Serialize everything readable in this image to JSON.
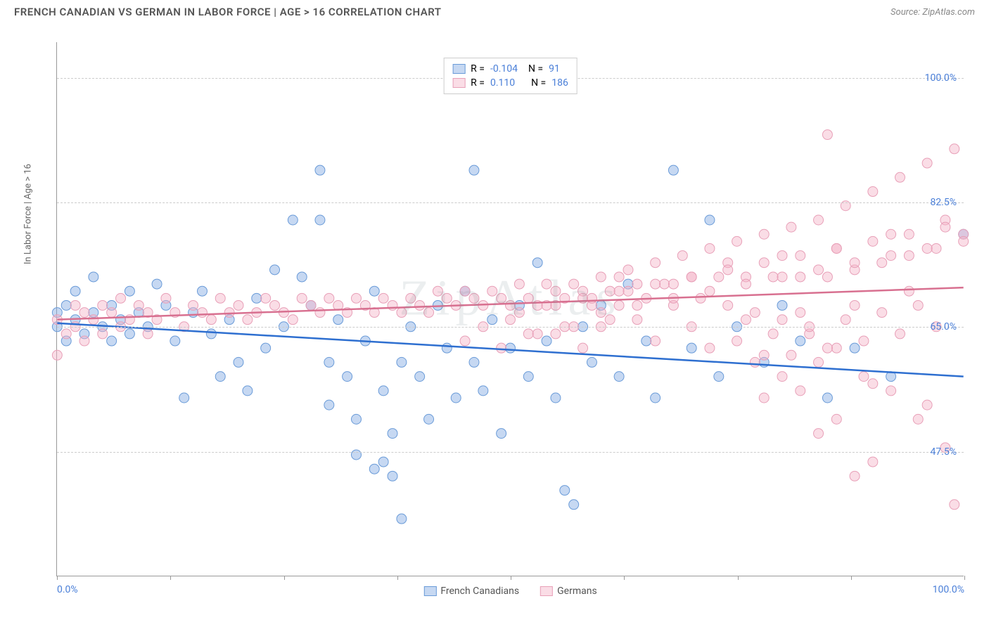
{
  "title": "FRENCH CANADIAN VS GERMAN IN LABOR FORCE | AGE > 16 CORRELATION CHART",
  "source": "Source: ZipAtlas.com",
  "watermark": "ZipAtlas",
  "ylabel": "In Labor Force | Age > 16",
  "chart": {
    "type": "scatter",
    "xlim": [
      0,
      100
    ],
    "ylim": [
      30,
      105
    ],
    "xtick_positions": [
      0,
      12.5,
      25,
      37.5,
      50,
      62.5,
      75,
      87.5,
      100
    ],
    "xtick_labels": {
      "0": "0.0%",
      "100": "100.0%"
    },
    "ytick_positions": [
      47.5,
      65.0,
      82.5,
      100.0
    ],
    "ytick_labels": [
      "47.5%",
      "65.0%",
      "82.5%",
      "100.0%"
    ],
    "ytick_color": "#4a7fd8",
    "xtick_color": "#4a7fd8",
    "background_color": "#ffffff",
    "grid_color": "#cccccc",
    "marker_radius": 7,
    "marker_opacity": 0.55,
    "line_width": 2.5,
    "series": [
      {
        "name": "French Canadians",
        "color_fill": "rgba(129,169,226,0.45)",
        "color_stroke": "#6a9bd8",
        "line_color": "#2e6fd0",
        "R": "-0.104",
        "N": "91",
        "regression": {
          "y_at_x0": 65.5,
          "y_at_x100": 58.0
        },
        "points": [
          [
            0,
            67
          ],
          [
            0,
            65
          ],
          [
            1,
            63
          ],
          [
            1,
            68
          ],
          [
            2,
            66
          ],
          [
            2,
            70
          ],
          [
            3,
            64
          ],
          [
            4,
            67
          ],
          [
            4,
            72
          ],
          [
            5,
            65
          ],
          [
            6,
            68
          ],
          [
            6,
            63
          ],
          [
            7,
            66
          ],
          [
            8,
            70
          ],
          [
            8,
            64
          ],
          [
            9,
            67
          ],
          [
            10,
            65
          ],
          [
            11,
            71
          ],
          [
            12,
            68
          ],
          [
            13,
            63
          ],
          [
            14,
            55
          ],
          [
            15,
            67
          ],
          [
            16,
            70
          ],
          [
            17,
            64
          ],
          [
            18,
            58
          ],
          [
            19,
            66
          ],
          [
            20,
            60
          ],
          [
            21,
            56
          ],
          [
            22,
            69
          ],
          [
            23,
            62
          ],
          [
            24,
            73
          ],
          [
            25,
            65
          ],
          [
            26,
            80
          ],
          [
            27,
            72
          ],
          [
            28,
            68
          ],
          [
            29,
            87
          ],
          [
            29,
            80
          ],
          [
            30,
            60
          ],
          [
            30,
            54
          ],
          [
            31,
            66
          ],
          [
            32,
            58
          ],
          [
            33,
            52
          ],
          [
            33,
            47
          ],
          [
            34,
            63
          ],
          [
            35,
            70
          ],
          [
            35,
            45
          ],
          [
            36,
            56
          ],
          [
            36,
            46
          ],
          [
            37,
            50
          ],
          [
            37,
            44
          ],
          [
            38,
            60
          ],
          [
            38,
            38
          ],
          [
            39,
            65
          ],
          [
            40,
            58
          ],
          [
            41,
            52
          ],
          [
            42,
            68
          ],
          [
            43,
            62
          ],
          [
            44,
            55
          ],
          [
            45,
            70
          ],
          [
            46,
            87
          ],
          [
            46,
            60
          ],
          [
            47,
            56
          ],
          [
            48,
            66
          ],
          [
            49,
            50
          ],
          [
            50,
            62
          ],
          [
            51,
            68
          ],
          [
            52,
            58
          ],
          [
            53,
            74
          ],
          [
            54,
            63
          ],
          [
            55,
            55
          ],
          [
            56,
            42
          ],
          [
            57,
            40
          ],
          [
            58,
            65
          ],
          [
            59,
            60
          ],
          [
            60,
            68
          ],
          [
            62,
            58
          ],
          [
            63,
            71
          ],
          [
            65,
            63
          ],
          [
            66,
            55
          ],
          [
            68,
            87
          ],
          [
            70,
            62
          ],
          [
            72,
            80
          ],
          [
            73,
            58
          ],
          [
            75,
            65
          ],
          [
            78,
            60
          ],
          [
            80,
            68
          ],
          [
            82,
            63
          ],
          [
            85,
            55
          ],
          [
            88,
            62
          ],
          [
            92,
            58
          ],
          [
            100,
            78
          ]
        ]
      },
      {
        "name": "Germans",
        "color_fill": "rgba(244,180,200,0.45)",
        "color_stroke": "#e8a0b8",
        "line_color": "#d87090",
        "R": "0.110",
        "N": "186",
        "regression": {
          "y_at_x0": 66.0,
          "y_at_x100": 70.5
        },
        "points": [
          [
            0,
            61
          ],
          [
            0,
            66
          ],
          [
            1,
            64
          ],
          [
            2,
            68
          ],
          [
            2,
            65
          ],
          [
            3,
            67
          ],
          [
            3,
            63
          ],
          [
            4,
            66
          ],
          [
            5,
            68
          ],
          [
            5,
            64
          ],
          [
            6,
            67
          ],
          [
            7,
            65
          ],
          [
            7,
            69
          ],
          [
            8,
            66
          ],
          [
            9,
            68
          ],
          [
            10,
            67
          ],
          [
            10,
            64
          ],
          [
            11,
            66
          ],
          [
            12,
            69
          ],
          [
            13,
            67
          ],
          [
            14,
            65
          ],
          [
            15,
            68
          ],
          [
            16,
            67
          ],
          [
            17,
            66
          ],
          [
            18,
            69
          ],
          [
            19,
            67
          ],
          [
            20,
            68
          ],
          [
            21,
            66
          ],
          [
            22,
            67
          ],
          [
            23,
            69
          ],
          [
            24,
            68
          ],
          [
            25,
            67
          ],
          [
            26,
            66
          ],
          [
            27,
            69
          ],
          [
            28,
            68
          ],
          [
            29,
            67
          ],
          [
            30,
            69
          ],
          [
            31,
            68
          ],
          [
            32,
            67
          ],
          [
            33,
            69
          ],
          [
            34,
            68
          ],
          [
            35,
            67
          ],
          [
            36,
            69
          ],
          [
            37,
            68
          ],
          [
            38,
            67
          ],
          [
            39,
            69
          ],
          [
            40,
            68
          ],
          [
            41,
            67
          ],
          [
            42,
            70
          ],
          [
            43,
            69
          ],
          [
            44,
            68
          ],
          [
            45,
            70
          ],
          [
            46,
            69
          ],
          [
            47,
            68
          ],
          [
            48,
            70
          ],
          [
            49,
            69
          ],
          [
            50,
            68
          ],
          [
            51,
            71
          ],
          [
            52,
            69
          ],
          [
            53,
            68
          ],
          [
            54,
            71
          ],
          [
            55,
            70
          ],
          [
            56,
            69
          ],
          [
            57,
            71
          ],
          [
            58,
            70
          ],
          [
            59,
            68
          ],
          [
            60,
            72
          ],
          [
            61,
            70
          ],
          [
            62,
            68
          ],
          [
            63,
            73
          ],
          [
            64,
            71
          ],
          [
            65,
            69
          ],
          [
            66,
            74
          ],
          [
            67,
            71
          ],
          [
            68,
            68
          ],
          [
            69,
            75
          ],
          [
            70,
            72
          ],
          [
            71,
            69
          ],
          [
            72,
            76
          ],
          [
            73,
            72
          ],
          [
            74,
            68
          ],
          [
            75,
            77
          ],
          [
            76,
            72
          ],
          [
            77,
            67
          ],
          [
            78,
            78
          ],
          [
            79,
            72
          ],
          [
            80,
            66
          ],
          [
            81,
            79
          ],
          [
            82,
            72
          ],
          [
            83,
            64
          ],
          [
            84,
            80
          ],
          [
            85,
            72
          ],
          [
            86,
            62
          ],
          [
            87,
            82
          ],
          [
            88,
            73
          ],
          [
            89,
            58
          ],
          [
            90,
            84
          ],
          [
            91,
            74
          ],
          [
            92,
            56
          ],
          [
            93,
            86
          ],
          [
            94,
            75
          ],
          [
            95,
            52
          ],
          [
            96,
            88
          ],
          [
            97,
            76
          ],
          [
            98,
            48
          ],
          [
            99,
            90
          ],
          [
            100,
            78
          ],
          [
            55,
            64
          ],
          [
            58,
            62
          ],
          [
            60,
            65
          ],
          [
            62,
            72
          ],
          [
            64,
            66
          ],
          [
            66,
            63
          ],
          [
            68,
            71
          ],
          [
            70,
            65
          ],
          [
            72,
            62
          ],
          [
            74,
            74
          ],
          [
            76,
            66
          ],
          [
            78,
            61
          ],
          [
            80,
            75
          ],
          [
            82,
            67
          ],
          [
            84,
            60
          ],
          [
            86,
            76
          ],
          [
            88,
            68
          ],
          [
            90,
            57
          ],
          [
            92,
            78
          ],
          [
            94,
            70
          ],
          [
            96,
            54
          ],
          [
            98,
            80
          ],
          [
            85,
            92
          ],
          [
            88,
            44
          ],
          [
            90,
            46
          ],
          [
            78,
            55
          ],
          [
            80,
            58
          ],
          [
            82,
            56
          ],
          [
            84,
            50
          ],
          [
            86,
            52
          ],
          [
            75,
            63
          ],
          [
            77,
            60
          ],
          [
            79,
            64
          ],
          [
            81,
            61
          ],
          [
            83,
            65
          ],
          [
            85,
            62
          ],
          [
            87,
            66
          ],
          [
            89,
            63
          ],
          [
            91,
            67
          ],
          [
            93,
            64
          ],
          [
            95,
            68
          ],
          [
            97,
            65
          ],
          [
            99,
            40
          ],
          [
            50,
            66
          ],
          [
            52,
            64
          ],
          [
            54,
            68
          ],
          [
            56,
            65
          ],
          [
            58,
            69
          ],
          [
            60,
            67
          ],
          [
            62,
            70
          ],
          [
            64,
            68
          ],
          [
            66,
            71
          ],
          [
            68,
            69
          ],
          [
            70,
            72
          ],
          [
            72,
            70
          ],
          [
            74,
            73
          ],
          [
            76,
            71
          ],
          [
            78,
            74
          ],
          [
            80,
            72
          ],
          [
            82,
            75
          ],
          [
            84,
            73
          ],
          [
            86,
            76
          ],
          [
            88,
            74
          ],
          [
            90,
            77
          ],
          [
            92,
            75
          ],
          [
            94,
            78
          ],
          [
            96,
            76
          ],
          [
            98,
            79
          ],
          [
            100,
            77
          ],
          [
            45,
            63
          ],
          [
            47,
            65
          ],
          [
            49,
            62
          ],
          [
            51,
            67
          ],
          [
            53,
            64
          ],
          [
            55,
            68
          ],
          [
            57,
            65
          ],
          [
            59,
            69
          ],
          [
            61,
            66
          ],
          [
            63,
            70
          ]
        ]
      }
    ]
  },
  "legend_bottom": [
    {
      "label": "French Canadians",
      "fill": "rgba(129,169,226,0.45)",
      "stroke": "#6a9bd8"
    },
    {
      "label": "Germans",
      "fill": "rgba(244,180,200,0.45)",
      "stroke": "#e8a0b8"
    }
  ]
}
